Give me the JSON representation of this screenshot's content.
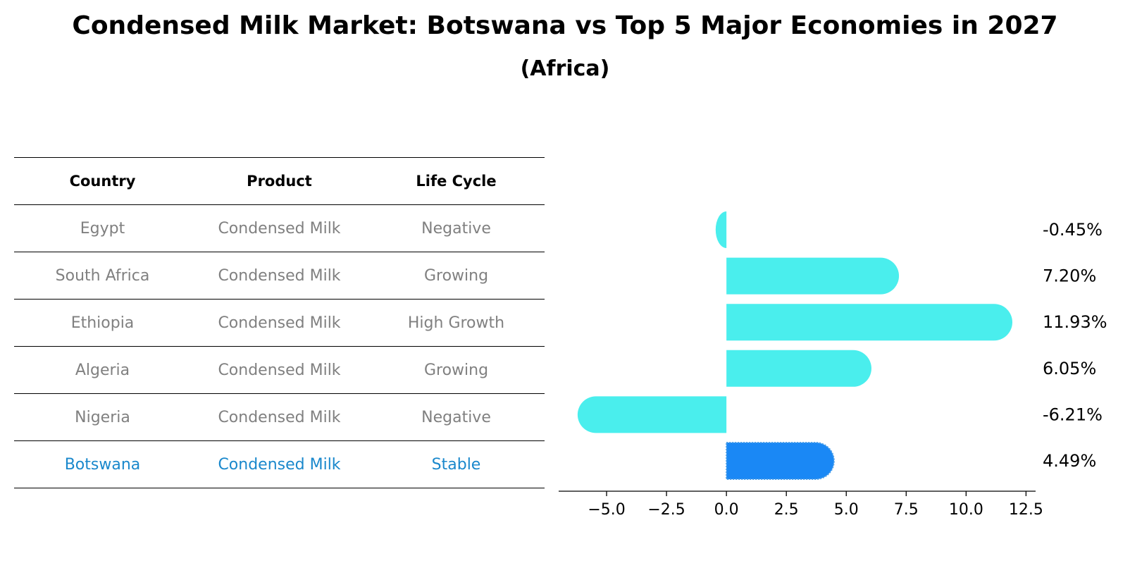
{
  "title": "Condensed Milk Market: Botswana vs Top 5 Major Economies in 2027",
  "subtitle": "(Africa)",
  "table": {
    "headers": [
      "Country",
      "Product",
      "Life Cycle"
    ],
    "rows": [
      [
        "Egypt",
        "Condensed Milk",
        "Negative"
      ],
      [
        "South Africa",
        "Condensed Milk",
        "Growing"
      ],
      [
        "Ethiopia",
        "Condensed Milk",
        "High Growth"
      ],
      [
        "Algeria",
        "Condensed Milk",
        "Growing"
      ],
      [
        "Nigeria",
        "Condensed Milk",
        "Negative"
      ],
      [
        "Botswana",
        "Condensed Milk",
        "Stable"
      ]
    ],
    "highlight_row": 5
  },
  "colors": {
    "bar": "#4aeeed",
    "highlight_bar": "#1a88f5",
    "highlight_text": "#1a88cc",
    "muted_text": "#808080"
  },
  "chart_data": {
    "type": "bar",
    "orientation": "horizontal",
    "categories": [
      "Egypt",
      "South Africa",
      "Ethiopia",
      "Algeria",
      "Nigeria",
      "Botswana"
    ],
    "values": [
      -0.45,
      7.2,
      11.93,
      6.05,
      -6.21,
      4.49
    ],
    "value_labels": [
      "-0.45%",
      "7.20%",
      "11.93%",
      "6.05%",
      "-6.21%",
      "4.49%"
    ],
    "highlight_index": 5,
    "xlim": [
      -7.0,
      12.9
    ],
    "xticks": [
      -5.0,
      -2.5,
      0.0,
      2.5,
      5.0,
      7.5,
      10.0,
      12.5
    ],
    "xtick_labels": [
      "−5.0",
      "−2.5",
      "0.0",
      "2.5",
      "5.0",
      "7.5",
      "10.0",
      "12.5"
    ],
    "grid": false
  }
}
